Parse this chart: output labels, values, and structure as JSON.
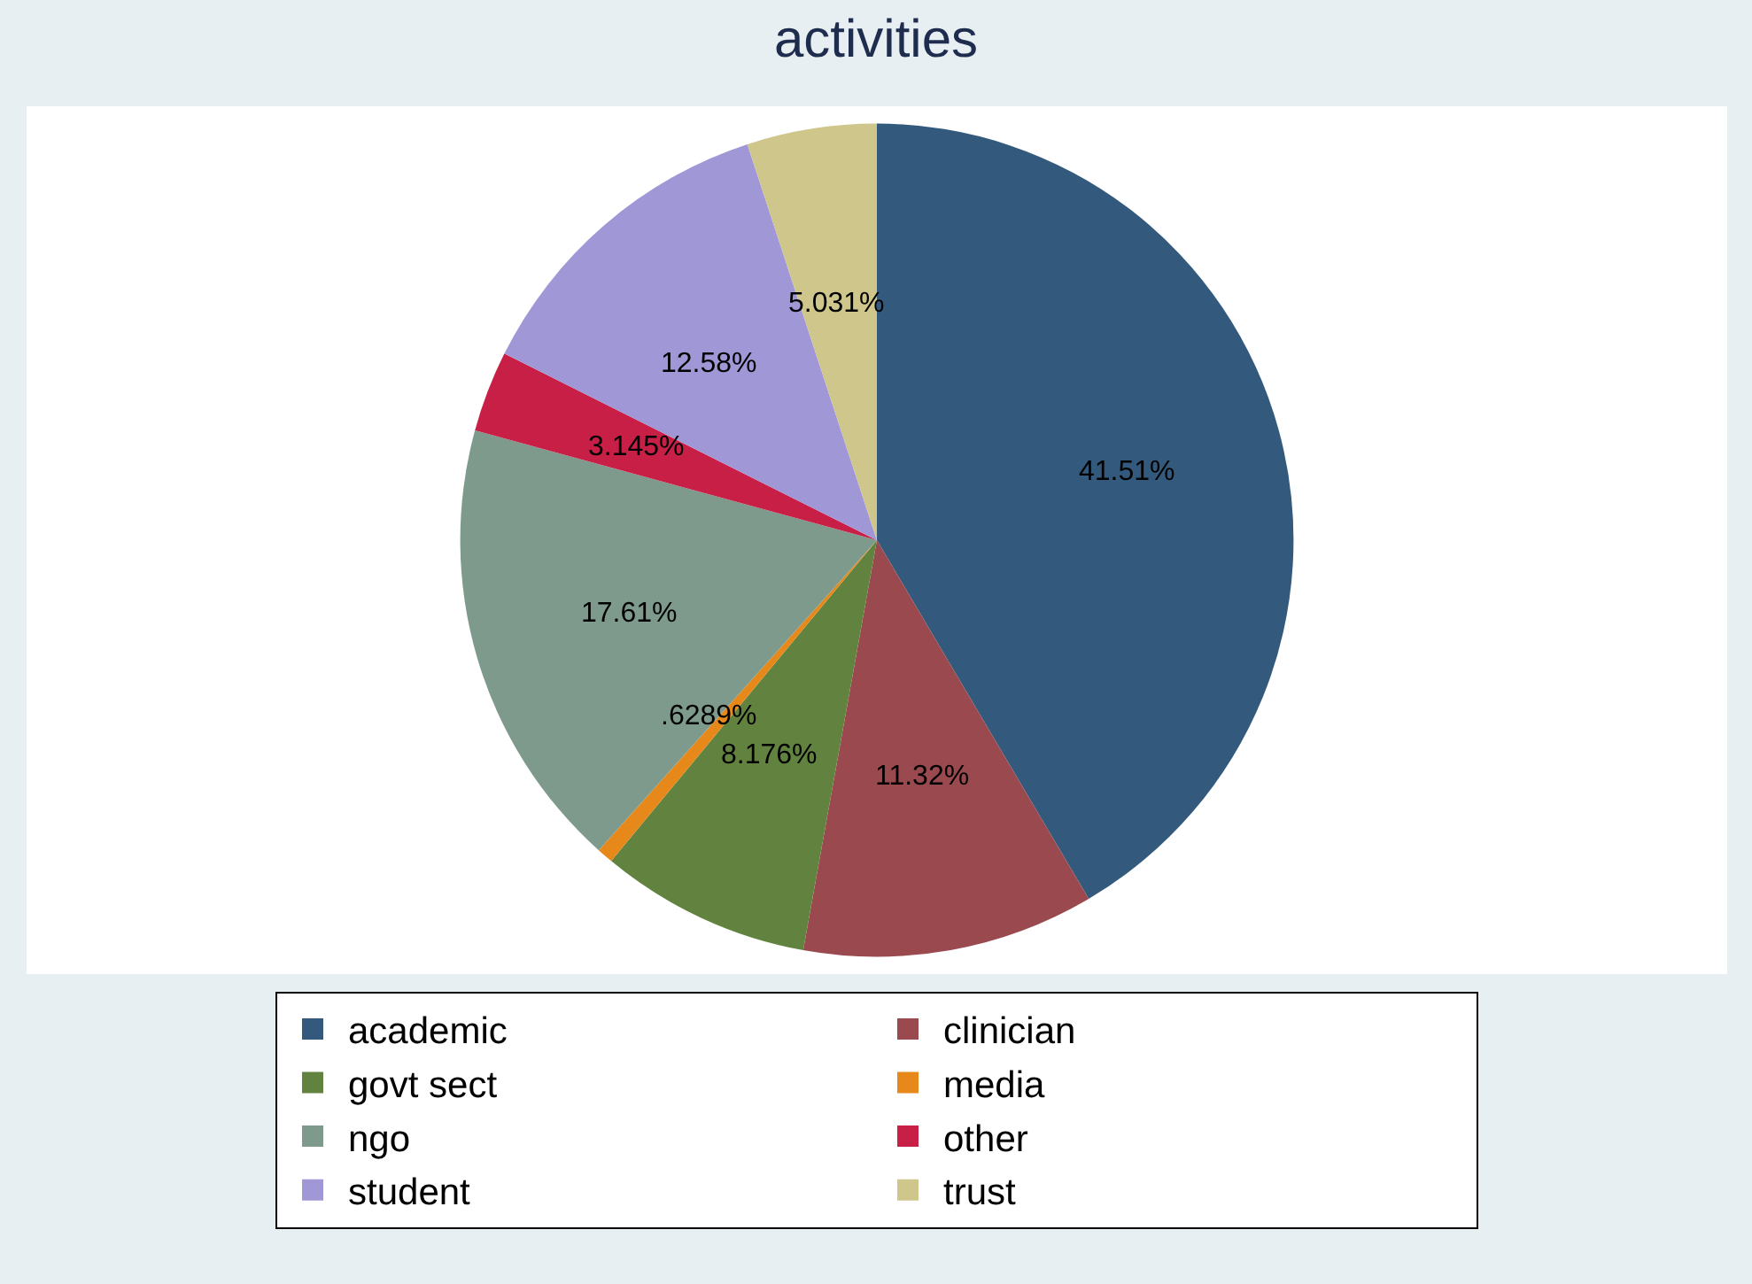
{
  "chart_data": {
    "type": "pie",
    "title": "activities",
    "categories": [
      "academic",
      "clinician",
      "govt sect",
      "media",
      "ngo",
      "other",
      "student",
      "trust"
    ],
    "values": [
      41.51,
      11.32,
      8.176,
      0.6289,
      17.61,
      3.145,
      12.58,
      5.031
    ],
    "value_labels": [
      "41.51%",
      "11.32%",
      "8.176%",
      ".6289%",
      "17.61%",
      "3.145%",
      "12.58%",
      "5.031%"
    ],
    "colors": [
      "#335a7c",
      "#9a4a4e",
      "#62833f",
      "#e6891a",
      "#7d9a8c",
      "#c81f47",
      "#a097d7",
      "#cfc68c"
    ],
    "legend": "bottom"
  }
}
